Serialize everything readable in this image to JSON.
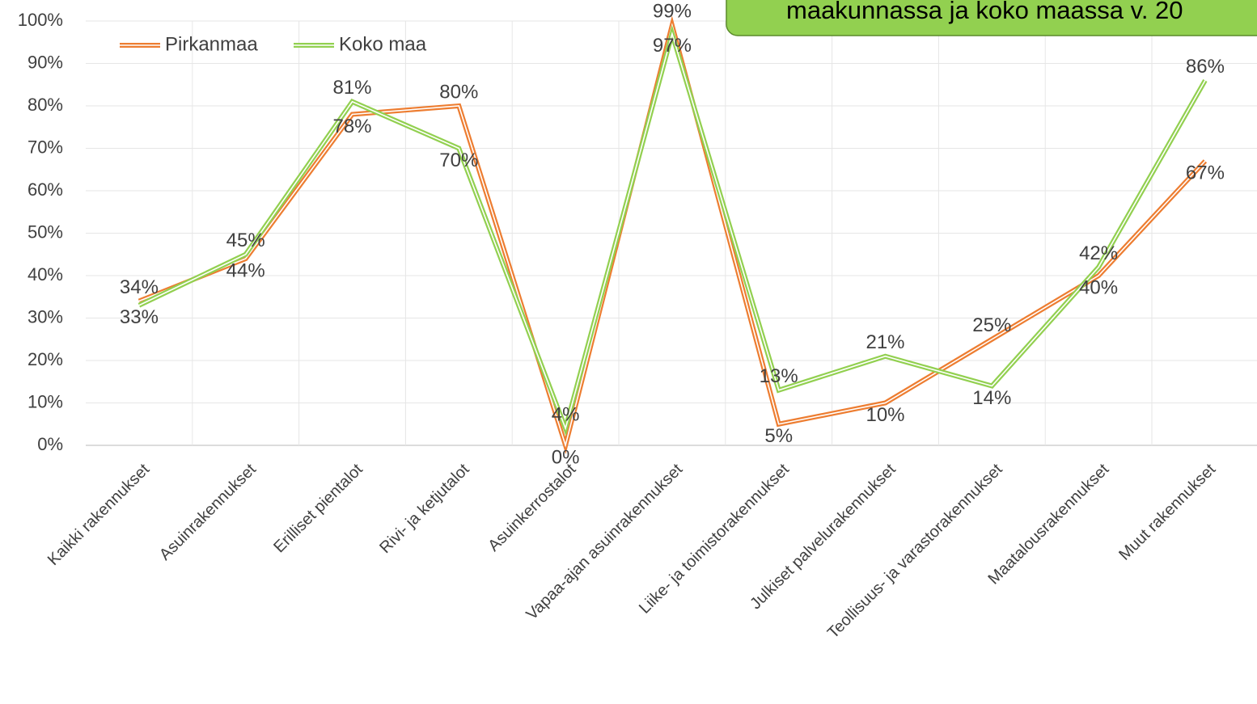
{
  "chart_data": {
    "type": "line",
    "title": "maakunnassa ja koko maassa v. 20",
    "categories": [
      "Kaikki rakennukset",
      "Asuinrakennukset",
      "Erilliset pientalot",
      "Rivi- ja ketjutalot",
      "Asuinkerrostalot",
      "Vapaa-ajan asuinrakennukset",
      "Liike- ja toimistorakennukset",
      "Julkiset palvelurakennukset",
      "Teollisuus- ja varastorakennukset",
      "Maatalousrakennukset",
      "Muut rakennukset"
    ],
    "series": [
      {
        "name": "Pirkanmaa",
        "color": "#ed7d31",
        "values": [
          34,
          44,
          78,
          80,
          0,
          99,
          5,
          10,
          25,
          40,
          67
        ],
        "value_labels": [
          "34%",
          "44%",
          "78%",
          "80%",
          "0%",
          "99%",
          "5%",
          "10%",
          "25%",
          "40%",
          "67%"
        ]
      },
      {
        "name": "Koko maa",
        "color": "#92d050",
        "values": [
          33,
          45,
          81,
          70,
          4,
          97,
          13,
          21,
          14,
          42,
          86
        ],
        "value_labels": [
          "33%",
          "45%",
          "81%",
          "70%",
          "4%",
          "97%",
          "13%",
          "21%",
          "14%",
          "42%",
          "86%"
        ]
      }
    ],
    "ylim": [
      0,
      100
    ],
    "yticks": [
      {
        "value": 0,
        "label": "0%"
      },
      {
        "value": 10,
        "label": "10%"
      },
      {
        "value": 20,
        "label": "20%"
      },
      {
        "value": 30,
        "label": "30%"
      },
      {
        "value": 40,
        "label": "40%"
      },
      {
        "value": 50,
        "label": "50%"
      },
      {
        "value": 60,
        "label": "60%"
      },
      {
        "value": 70,
        "label": "70%"
      },
      {
        "value": 80,
        "label": "80%"
      },
      {
        "value": 90,
        "label": "90%"
      },
      {
        "value": 100,
        "label": "100%"
      }
    ],
    "grid": true,
    "legend": "top-left"
  }
}
